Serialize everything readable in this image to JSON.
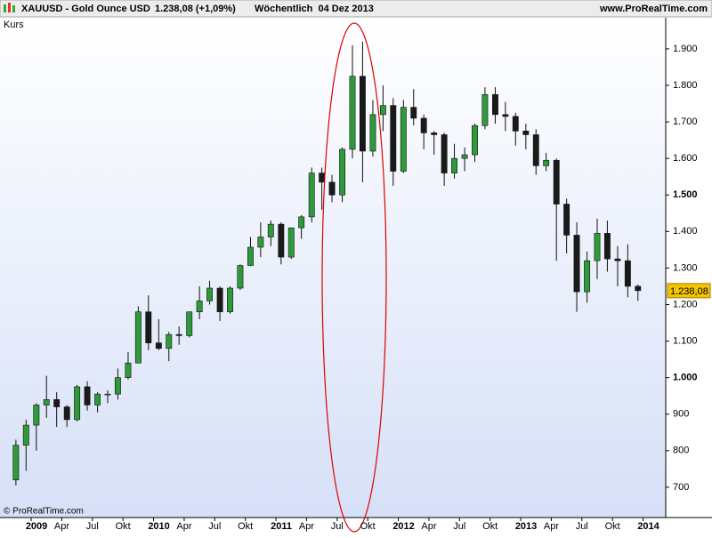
{
  "header": {
    "symbol": "XAUUSD - Gold Ounce USD",
    "price": "1.238,08 (+1,09%)",
    "period": "Wöchentlich  04 Dez 2013",
    "site": "www.ProRealTime.com"
  },
  "chart_data": {
    "type": "candlestick",
    "panel_label": "Kurs",
    "copyright": "© ProRealTime.com",
    "last_price": {
      "value": 1238.08,
      "label": "1.238,08"
    },
    "up_color": "#2f9a3a",
    "down_color": "#1a1a1a",
    "x": [
      2008.875,
      2008.958,
      2009.042,
      2009.125,
      2009.208,
      2009.292,
      2009.375,
      2009.458,
      2009.542,
      2009.625,
      2009.708,
      2009.792,
      2009.875,
      2009.958,
      2010.042,
      2010.125,
      2010.208,
      2010.292,
      2010.375,
      2010.458,
      2010.542,
      2010.625,
      2010.708,
      2010.792,
      2010.875,
      2010.958,
      2011.042,
      2011.125,
      2011.208,
      2011.292,
      2011.375,
      2011.458,
      2011.542,
      2011.625,
      2011.708,
      2011.792,
      2011.875,
      2011.958,
      2012.042,
      2012.125,
      2012.208,
      2012.292,
      2012.375,
      2012.458,
      2012.542,
      2012.625,
      2012.708,
      2012.792,
      2012.875,
      2012.958,
      2013.042,
      2013.125,
      2013.208,
      2013.292,
      2013.375,
      2013.458,
      2013.542,
      2013.625,
      2013.708,
      2013.792,
      2013.875,
      2013.958
    ],
    "open": [
      720,
      815,
      870,
      925,
      940,
      920,
      885,
      975,
      925,
      955,
      955,
      1000,
      1040,
      1180,
      1095,
      1080,
      1118,
      1115,
      1180,
      1210,
      1245,
      1180,
      1245,
      1307,
      1357,
      1385,
      1420,
      1330,
      1410,
      1440,
      1560,
      1535,
      1500,
      1625,
      1825,
      1620,
      1720,
      1745,
      1565,
      1740,
      1710,
      1670,
      1665,
      1560,
      1600,
      1610,
      1690,
      1775,
      1720,
      1715,
      1675,
      1665,
      1580,
      1595,
      1475,
      1390,
      1235,
      1320,
      1395,
      1325,
      1320,
      1250
    ],
    "high": [
      830,
      885,
      930,
      1005,
      960,
      925,
      980,
      990,
      960,
      965,
      1025,
      1070,
      1195,
      1225,
      1160,
      1125,
      1140,
      1180,
      1250,
      1265,
      1250,
      1250,
      1310,
      1385,
      1425,
      1430,
      1425,
      1410,
      1445,
      1575,
      1575,
      1555,
      1630,
      1910,
      1920,
      1760,
      1800,
      1765,
      1760,
      1790,
      1720,
      1675,
      1670,
      1640,
      1630,
      1695,
      1795,
      1795,
      1755,
      1725,
      1695,
      1680,
      1615,
      1600,
      1490,
      1425,
      1345,
      1435,
      1430,
      1360,
      1365,
      1255
    ],
    "low": [
      705,
      745,
      800,
      890,
      865,
      865,
      880,
      910,
      905,
      930,
      940,
      995,
      1040,
      1075,
      1075,
      1045,
      1090,
      1110,
      1160,
      1200,
      1155,
      1175,
      1240,
      1305,
      1330,
      1360,
      1310,
      1325,
      1380,
      1425,
      1460,
      1480,
      1480,
      1600,
      1535,
      1605,
      1675,
      1525,
      1560,
      1690,
      1625,
      1610,
      1525,
      1545,
      1565,
      1590,
      1680,
      1695,
      1675,
      1635,
      1625,
      1555,
      1565,
      1320,
      1340,
      1180,
      1205,
      1270,
      1290,
      1250,
      1220,
      1210
    ],
    "close": [
      815,
      870,
      925,
      940,
      920,
      885,
      975,
      925,
      955,
      955,
      1000,
      1040,
      1180,
      1095,
      1080,
      1118,
      1115,
      1180,
      1210,
      1245,
      1180,
      1245,
      1307,
      1357,
      1385,
      1420,
      1330,
      1410,
      1440,
      1560,
      1535,
      1500,
      1625,
      1825,
      1620,
      1720,
      1745,
      1565,
      1740,
      1710,
      1670,
      1665,
      1560,
      1600,
      1610,
      1690,
      1775,
      1720,
      1715,
      1675,
      1665,
      1580,
      1595,
      1475,
      1390,
      1235,
      1320,
      1395,
      1325,
      1320,
      1250,
      1238.08
    ],
    "xlim": [
      2008.745,
      2014.185
    ],
    "xticks": [
      2009,
      {
        "value": 2009.25,
        "label": "Apr"
      },
      {
        "value": 2009.5,
        "label": "Jul"
      },
      {
        "value": 2009.75,
        "label": "Okt"
      },
      2010,
      {
        "value": 2010.25,
        "label": "Apr"
      },
      {
        "value": 2010.5,
        "label": "Jul"
      },
      {
        "value": 2010.75,
        "label": "Okt"
      },
      2011,
      {
        "value": 2011.25,
        "label": "Apr"
      },
      {
        "value": 2011.5,
        "label": "Jul"
      },
      {
        "value": 2011.75,
        "label": "Okt"
      },
      2012,
      {
        "value": 2012.25,
        "label": "Apr"
      },
      {
        "value": 2012.5,
        "label": "Jul"
      },
      {
        "value": 2012.75,
        "label": "Okt"
      },
      2013,
      {
        "value": 2013.25,
        "label": "Apr"
      },
      {
        "value": 2013.5,
        "label": "Jul"
      },
      {
        "value": 2013.75,
        "label": "Okt"
      },
      2014
    ],
    "ylim": [
      617,
      1985
    ],
    "yticks": [
      700,
      800,
      900,
      {
        "value": 1000,
        "label": "1.000"
      },
      {
        "value": 1100,
        "label": "1.100"
      },
      {
        "value": 1200,
        "label": "1.200"
      },
      {
        "value": 1300,
        "label": "1.300"
      },
      {
        "value": 1400,
        "label": "1.400"
      },
      {
        "value": 1500,
        "label": "1.500"
      },
      {
        "value": 1600,
        "label": "1.600"
      },
      {
        "value": 1700,
        "label": "1.700"
      },
      {
        "value": 1800,
        "label": "1.800"
      },
      {
        "value": 1900,
        "label": "1.900"
      }
    ]
  }
}
